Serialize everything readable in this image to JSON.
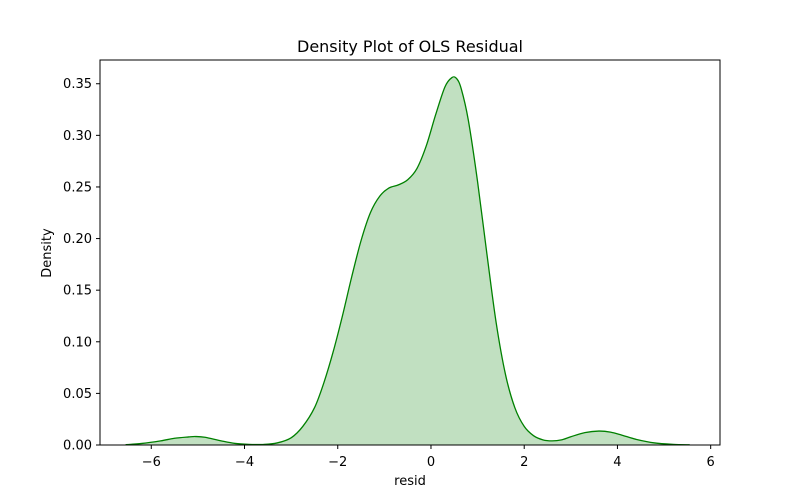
{
  "chart_data": {
    "type": "area",
    "title": "Density Plot of OLS Residual",
    "xlabel": "resid",
    "ylabel": "Density",
    "xlim": [
      -7.1,
      6.2
    ],
    "ylim": [
      0,
      0.373
    ],
    "xticks": [
      -6,
      -4,
      -2,
      0,
      2,
      4,
      6
    ],
    "xtick_labels": [
      "−6",
      "−4",
      "−2",
      "0",
      "2",
      "4",
      "6"
    ],
    "yticks": [
      0.0,
      0.05,
      0.1,
      0.15,
      0.2,
      0.25,
      0.3,
      0.35
    ],
    "ytick_labels": [
      "0.00",
      "0.05",
      "0.10",
      "0.15",
      "0.20",
      "0.25",
      "0.30",
      "0.35"
    ],
    "grid": false,
    "line_color": "#008000",
    "fill_color": "#c1e0c1",
    "series": [
      {
        "x": [
          -6.55,
          -6.2,
          -5.8,
          -5.5,
          -5.2,
          -5.05,
          -4.85,
          -4.5,
          -4.2,
          -3.9,
          -3.6,
          -3.3,
          -3.0,
          -2.75,
          -2.5,
          -2.3,
          -2.1,
          -1.9,
          -1.7,
          -1.5,
          -1.3,
          -1.1,
          -0.9,
          -0.7,
          -0.5,
          -0.3,
          -0.1,
          0.1,
          0.3,
          0.45,
          0.55,
          0.65,
          0.8,
          1.0,
          1.2,
          1.4,
          1.6,
          1.8,
          2.0,
          2.2,
          2.4,
          2.6,
          2.8,
          3.0,
          3.3,
          3.6,
          3.85,
          4.1,
          4.4,
          4.8,
          5.2,
          5.55
        ],
        "y": [
          0.0003,
          0.0015,
          0.004,
          0.0065,
          0.0078,
          0.0082,
          0.0075,
          0.004,
          0.0015,
          0.0006,
          0.0005,
          0.002,
          0.007,
          0.018,
          0.036,
          0.06,
          0.09,
          0.125,
          0.163,
          0.198,
          0.225,
          0.241,
          0.249,
          0.252,
          0.257,
          0.268,
          0.29,
          0.32,
          0.347,
          0.356,
          0.355,
          0.345,
          0.315,
          0.255,
          0.185,
          0.118,
          0.068,
          0.036,
          0.018,
          0.009,
          0.005,
          0.004,
          0.005,
          0.008,
          0.012,
          0.0135,
          0.0125,
          0.0095,
          0.0055,
          0.002,
          0.0006,
          0.0002
        ]
      }
    ]
  }
}
